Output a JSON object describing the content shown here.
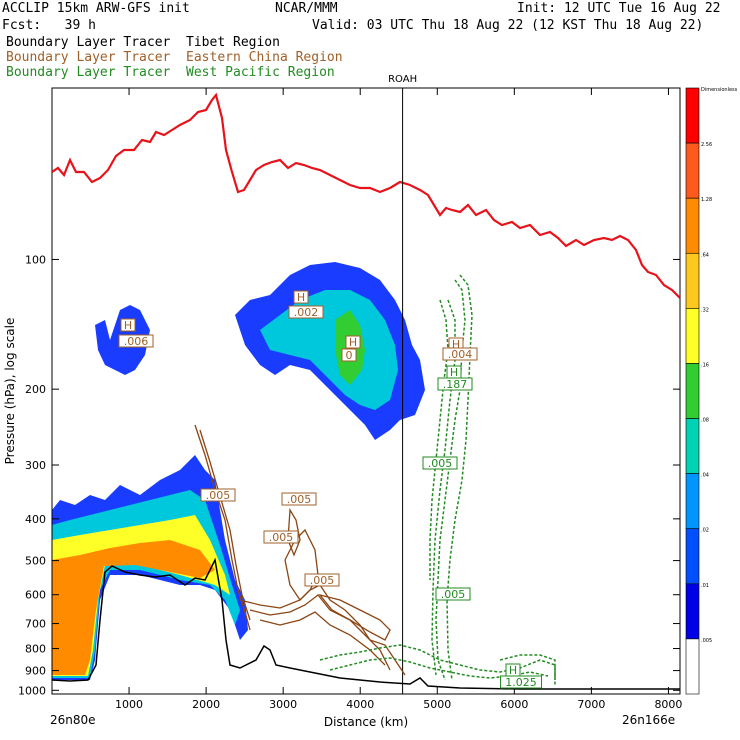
{
  "header": {
    "model": "ACCLIP 15km ARW-GFS init",
    "org": "NCAR/MMM",
    "init": "Init: 12 UTC Tue 16 Aug 22",
    "fcst": "Fcst:   39 h",
    "valid": "Valid: 03 UTC Thu 18 Aug 22 (12 KST Thu 18 Aug 22)",
    "lines": [
      {
        "label": "Boundary Layer Tracer",
        "region": "Tibet Region",
        "color": "#000000"
      },
      {
        "label": "Boundary Layer Tracer",
        "region": "Eastern China Region",
        "color": "#a0602a"
      },
      {
        "label": "Boundary Layer Tracer",
        "region": "West Pacific Region",
        "color": "#228b22"
      }
    ]
  },
  "chart_data": {
    "type": "cross-section",
    "xlabel": "Distance (km)",
    "ylabel": "Pressure (hPa), log scale",
    "xlim": [
      0,
      8150
    ],
    "ylim": [
      1020,
      40
    ],
    "yscale": "log",
    "x_ticks": [
      "1000",
      "2000",
      "3000",
      "4000",
      "5000",
      "6000",
      "7000",
      "8000"
    ],
    "y_ticks": [
      "100",
      "200",
      "300",
      "400",
      "500",
      "600",
      "700",
      "800",
      "900",
      "1000"
    ],
    "left_endpoint": "26n80e",
    "right_endpoint": "26n166e",
    "station": {
      "name": "ROAH",
      "x": 4550
    },
    "colorbar": {
      "levels": [
        "Dimensionless",
        "2.56",
        "1.28",
        ".64",
        ".32",
        ".16",
        ".08",
        ".04",
        ".02",
        ".01",
        ".005"
      ],
      "colors": [
        "#ff0000",
        "#ff5a1e",
        "#ff8c00",
        "#ffc81e",
        "#ffff28",
        "#32cd32",
        "#00d2b4",
        "#0096ff",
        "#0050ff",
        "#0000e6",
        "#ffffff"
      ]
    },
    "contour_labels": {
      "tibet": [
        "H",
        ".006",
        "H",
        ".002",
        "H",
        "0"
      ],
      "eastern_china": [
        ".005",
        ".005",
        ".005",
        ".005",
        "H",
        ".004"
      ],
      "west_pacific": [
        "H",
        ".187",
        ".005",
        ".005",
        "H",
        "1.025"
      ]
    }
  }
}
